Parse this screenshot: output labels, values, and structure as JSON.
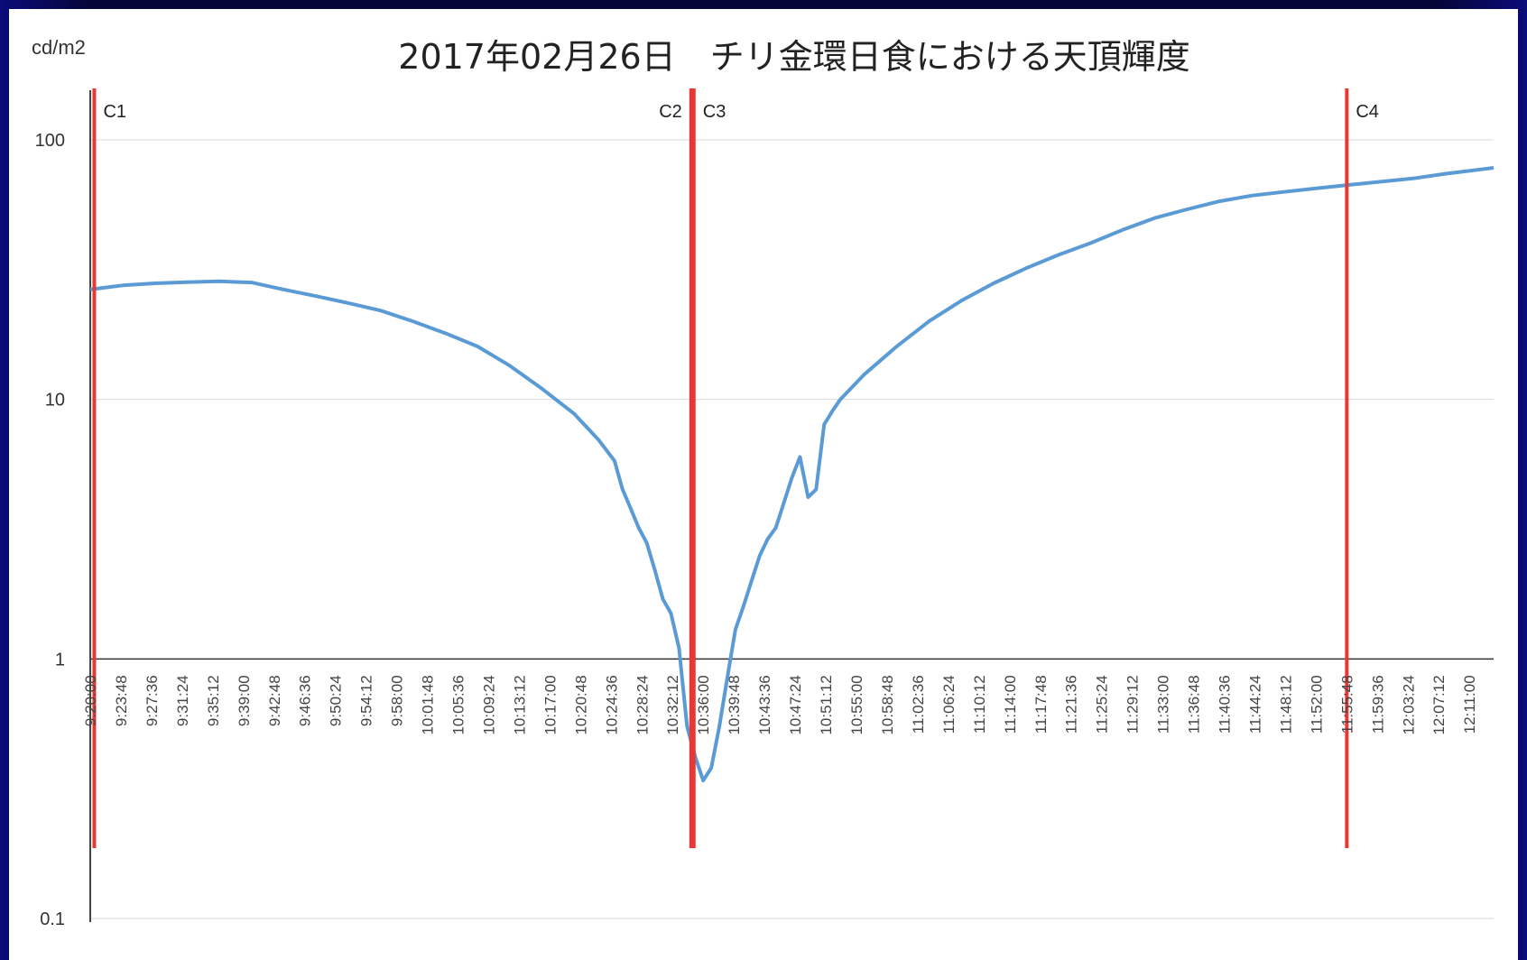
{
  "chart_data": {
    "type": "line",
    "title": "2017年02月26日　チリ金環日食における天頂輝度",
    "ylabel": "cd/m2",
    "yscale": "log",
    "ylim": [
      0.1,
      100
    ],
    "yticks": [
      "100",
      "10",
      "1",
      "0.1"
    ],
    "ytick_values": [
      100,
      10,
      1,
      0.1
    ],
    "xlim": [
      "9:20:00",
      "12:14:00"
    ],
    "xticks": [
      "9:20:00",
      "9:23:48",
      "9:27:36",
      "9:31:24",
      "9:35:12",
      "9:39:00",
      "9:42:48",
      "9:46:36",
      "9:50:24",
      "9:54:12",
      "9:58:00",
      "10:01:48",
      "10:05:36",
      "10:09:24",
      "10:13:12",
      "10:17:00",
      "10:20:48",
      "10:24:36",
      "10:28:24",
      "10:32:12",
      "10:36:00",
      "10:39:48",
      "10:43:36",
      "10:47:24",
      "10:51:12",
      "10:55:00",
      "10:58:48",
      "11:02:36",
      "11:06:24",
      "11:10:12",
      "11:14:00",
      "11:17:48",
      "11:21:36",
      "11:25:24",
      "11:29:12",
      "11:33:00",
      "11:36:48",
      "11:40:36",
      "11:44:24",
      "11:48:12",
      "11:52:00",
      "11:55:48",
      "11:59:36",
      "12:03:24",
      "12:07:12",
      "12:11:00"
    ],
    "grid": true,
    "series": [
      {
        "color": "#5b9bd5",
        "x": [
          "9:20:00",
          "9:24:00",
          "9:28:00",
          "9:32:00",
          "9:36:00",
          "9:40:00",
          "9:44:00",
          "9:48:00",
          "9:52:00",
          "9:56:00",
          "10:00:00",
          "10:04:00",
          "10:08:00",
          "10:12:00",
          "10:16:00",
          "10:20:00",
          "10:23:00",
          "10:25:00",
          "10:26:00",
          "10:27:00",
          "10:28:00",
          "10:29:00",
          "10:30:00",
          "10:31:00",
          "10:32:00",
          "10:33:00",
          "10:34:00",
          "10:35:00",
          "10:36:00",
          "10:37:00",
          "10:38:00",
          "10:39:00",
          "10:40:00",
          "10:41:00",
          "10:42:00",
          "10:43:00",
          "10:44:00",
          "10:45:00",
          "10:46:00",
          "10:47:00",
          "10:48:00",
          "10:49:00",
          "10:50:00",
          "10:51:00",
          "10:52:00",
          "10:53:00",
          "10:56:00",
          "11:00:00",
          "11:04:00",
          "11:08:00",
          "11:12:00",
          "11:16:00",
          "11:20:00",
          "11:24:00",
          "11:28:00",
          "11:32:00",
          "11:36:00",
          "11:40:00",
          "11:44:00",
          "11:48:00",
          "11:52:00",
          "11:56:00",
          "12:00:00",
          "12:04:00",
          "12:08:00",
          "12:14:00"
        ],
        "y": [
          26.5,
          27.5,
          28,
          28.3,
          28.5,
          28.2,
          26.5,
          25,
          23.5,
          22,
          20,
          18,
          16,
          13.5,
          11,
          8.8,
          7,
          5.8,
          4.5,
          3.8,
          3.2,
          2.8,
          2.2,
          1.7,
          1.5,
          1.1,
          0.55,
          0.42,
          0.34,
          0.38,
          0.55,
          0.85,
          1.3,
          1.6,
          2.0,
          2.5,
          2.9,
          3.2,
          4.0,
          5.0,
          6.0,
          4.2,
          4.5,
          8.0,
          9.0,
          10.0,
          12.5,
          16,
          20,
          24,
          28,
          32,
          36,
          40,
          45,
          50,
          54,
          58,
          61,
          63,
          65,
          67,
          69,
          71,
          74,
          78
        ]
      }
    ],
    "vlines": [
      {
        "label": "C1",
        "x": "9:20:30",
        "color": "#e53935"
      },
      {
        "label": "C2",
        "x": "10:34:30",
        "color": "#e53935"
      },
      {
        "label": "C3",
        "x": "10:34:50",
        "color": "#e53935"
      },
      {
        "label": "C4",
        "x": "11:55:48",
        "color": "#e53935"
      }
    ]
  }
}
